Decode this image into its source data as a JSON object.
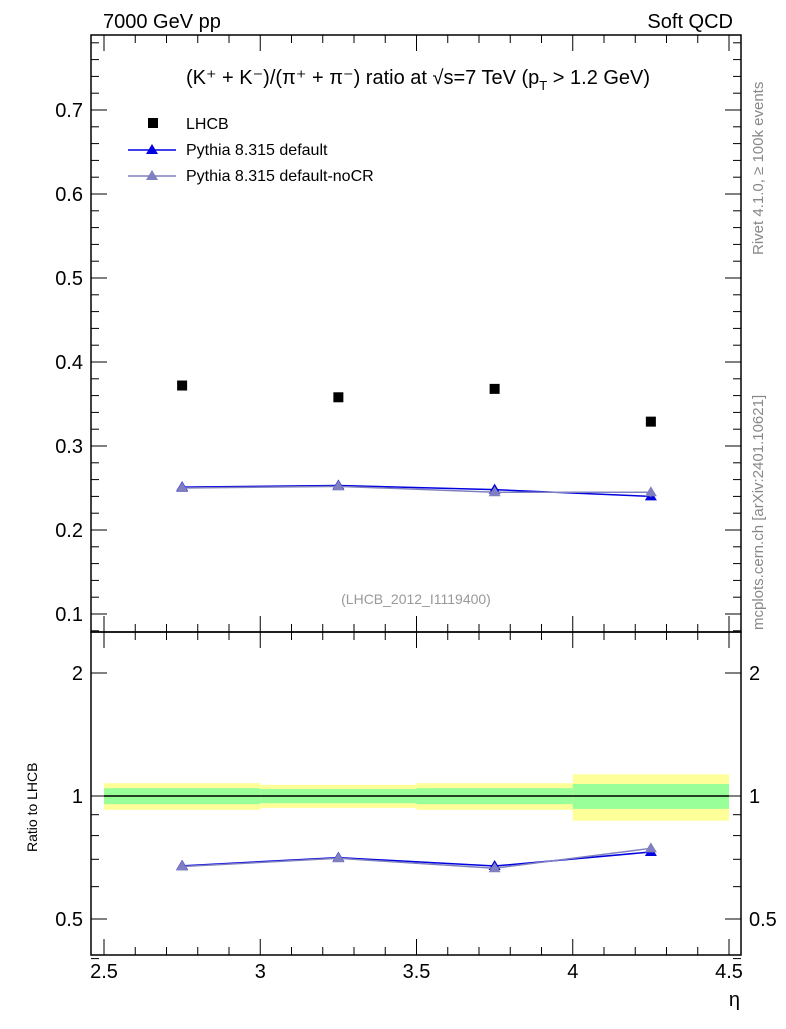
{
  "header": {
    "left": "7000 GeV pp",
    "right": "Soft QCD"
  },
  "side_labels": {
    "rivet": "Rivet 4.1.0, ≥ 100k events",
    "mcplots": "mcplots.cern.ch [arXiv:2401.10621]"
  },
  "colors": {
    "data": "#000000",
    "default": "#0000e0",
    "nocr": "#8080c0",
    "band_stat": "#99ff99",
    "band_total": "#ffff99"
  },
  "chart_data": {
    "type": "scatter",
    "title_main": "(K⁺ + K⁻)/(π⁺ + π⁻) ratio at √s=7 TeV (p",
    "title_sub": "T",
    "title_end": " > 1.2 GeV)",
    "analysis_label": "(LHCB_2012_I1119400)",
    "xlabel": "η",
    "ylabel": "",
    "ratio_ylabel": "Ratio to LHCB",
    "xlim": [
      2.5,
      4.5
    ],
    "ylim": [
      0.08,
      0.79
    ],
    "ratio_ylim": [
      0.4,
      2.4
    ],
    "ratio_scale": "log",
    "x_ticks": [
      "2.5",
      "3",
      "3.5",
      "4",
      "4.5"
    ],
    "y_ticks": [
      "0.1",
      "0.2",
      "0.3",
      "0.4",
      "0.5",
      "0.6",
      "0.7"
    ],
    "ratio_ticks": [
      "0.5",
      "1",
      "2"
    ],
    "legend_position": "top-left",
    "x": [
      2.75,
      3.25,
      3.75,
      4.25
    ],
    "x_bins": [
      [
        2.5,
        3.0
      ],
      [
        3.0,
        3.5
      ],
      [
        3.5,
        4.0
      ],
      [
        4.0,
        4.5
      ]
    ],
    "series": [
      {
        "name": "LHCB",
        "values": [
          0.372,
          0.358,
          0.368,
          0.329
        ],
        "stat_rel": [
          0.045,
          0.04,
          0.045,
          0.07
        ],
        "total_rel": [
          0.075,
          0.065,
          0.075,
          0.13
        ]
      },
      {
        "name": "Pythia 8.315 default",
        "values": [
          0.251,
          0.253,
          0.248,
          0.24
        ],
        "err": [
          0.004,
          0.004,
          0.004,
          0.004
        ]
      },
      {
        "name": "Pythia 8.315 default-noCR",
        "values": [
          0.25,
          0.252,
          0.245,
          0.245
        ],
        "err": [
          0.004,
          0.004,
          0.004,
          0.006
        ]
      }
    ]
  }
}
